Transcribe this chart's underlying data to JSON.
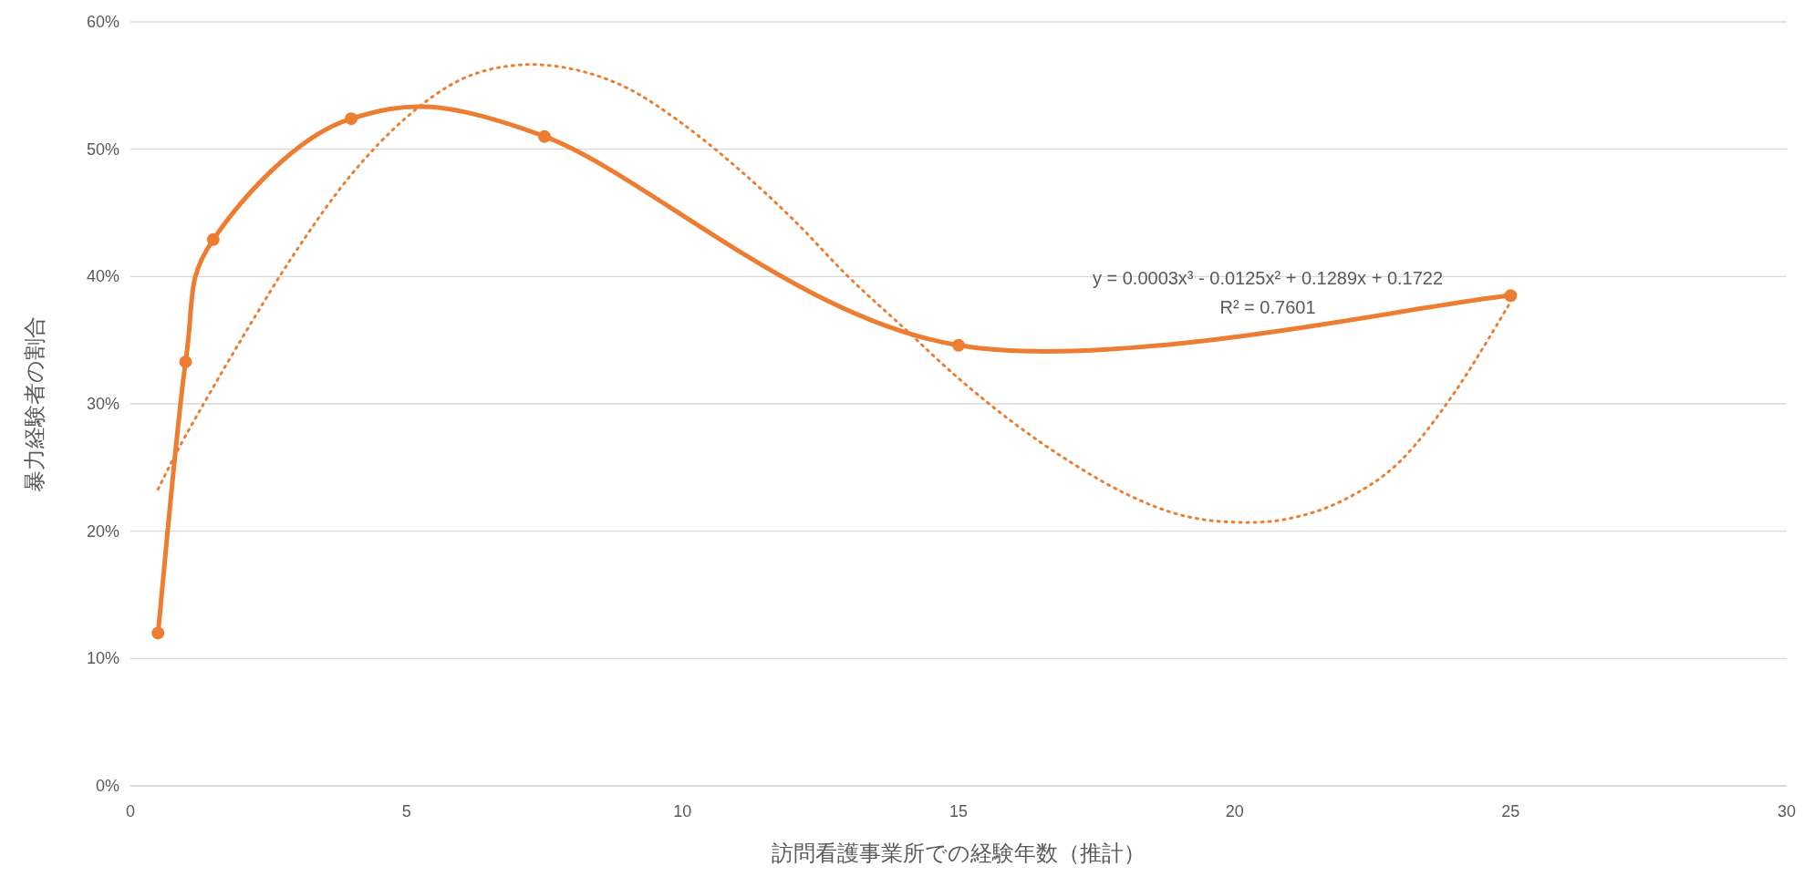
{
  "chart_data": {
    "type": "line",
    "xlabel": "訪問看護事業所での経験年数（推計）",
    "ylabel": "暴力経験者の割合",
    "xlim": [
      0,
      30
    ],
    "xticks": [
      0,
      5,
      10,
      15,
      20,
      25,
      30
    ],
    "ylim": [
      0,
      60
    ],
    "yticks": [
      {
        "value": 0,
        "label": "0%"
      },
      {
        "value": 10,
        "label": "10%"
      },
      {
        "value": 20,
        "label": "20%"
      },
      {
        "value": 30,
        "label": "30%"
      },
      {
        "value": 40,
        "label": "40%"
      },
      {
        "value": 50,
        "label": "50%"
      },
      {
        "value": 60,
        "label": "60%"
      }
    ],
    "grid": "y",
    "series": [
      {
        "color": "#ed7d31",
        "marker": "circle",
        "line_style": "solid",
        "x": [
          0.5,
          1,
          1.5,
          4,
          7.5,
          15,
          25
        ],
        "values": [
          12,
          33.3,
          42.9,
          52.4,
          51,
          34.6,
          38.5
        ]
      },
      {
        "color": "#ed7d31",
        "marker": "none",
        "line_style": "dotted",
        "x": [
          0.5,
          1,
          2,
          3,
          4,
          5,
          6,
          7,
          8,
          9,
          10,
          11,
          12,
          13,
          14,
          15,
          16,
          17,
          18,
          19,
          20,
          21,
          22,
          23,
          24,
          25
        ],
        "values": [
          23.3,
          27.5,
          35,
          42,
          48,
          52.5,
          55.5,
          56.6,
          56.3,
          54.8,
          52,
          48.5,
          44.5,
          40,
          36,
          32,
          28.5,
          25.5,
          23,
          21.3,
          20.7,
          21,
          22.5,
          25.5,
          31,
          38
        ]
      }
    ],
    "annotations": [
      "y = 0.0003x³ - 0.0125x² + 0.1289x + 0.1722",
      "R² = 0.7601"
    ]
  }
}
